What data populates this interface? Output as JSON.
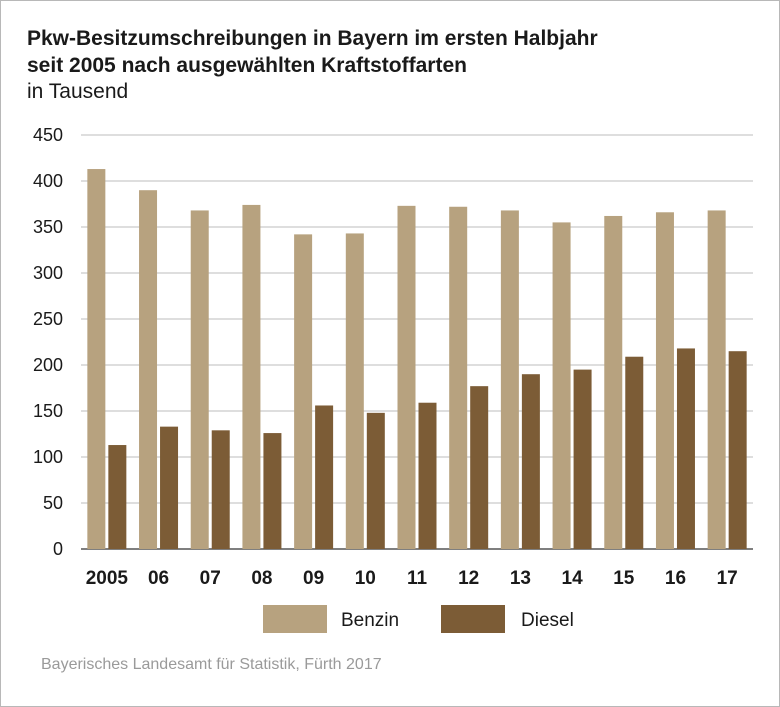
{
  "header": {
    "title_line1": "Pkw-Besitzumschreibungen in Bayern im ersten Halbjahr",
    "title_line2": "seit 2005 nach ausgewählten Kraftstoffarten",
    "subtitle": "in Tausend"
  },
  "source": "Bayerisches Landesamt für Statistik, Fürth 2017",
  "colors": {
    "benzin": "#b7a27f",
    "diesel": "#7c5c36",
    "grid": "#bdbdbd",
    "axis_text": "#1a1a1a"
  },
  "chart_data": {
    "type": "bar",
    "categories": [
      "2005",
      "06",
      "07",
      "08",
      "09",
      "10",
      "11",
      "12",
      "13",
      "14",
      "15",
      "16",
      "17"
    ],
    "series": [
      {
        "name": "Benzin",
        "values": [
          413,
          390,
          368,
          374,
          342,
          343,
          373,
          372,
          368,
          355,
          362,
          366,
          368
        ]
      },
      {
        "name": "Diesel",
        "values": [
          113,
          133,
          129,
          126,
          156,
          148,
          159,
          177,
          190,
          195,
          209,
          218,
          215
        ]
      }
    ],
    "ylim": [
      0,
      450
    ],
    "yticks": [
      0,
      50,
      100,
      150,
      200,
      250,
      300,
      350,
      400,
      450
    ],
    "grid": true,
    "legend_position": "bottom"
  }
}
